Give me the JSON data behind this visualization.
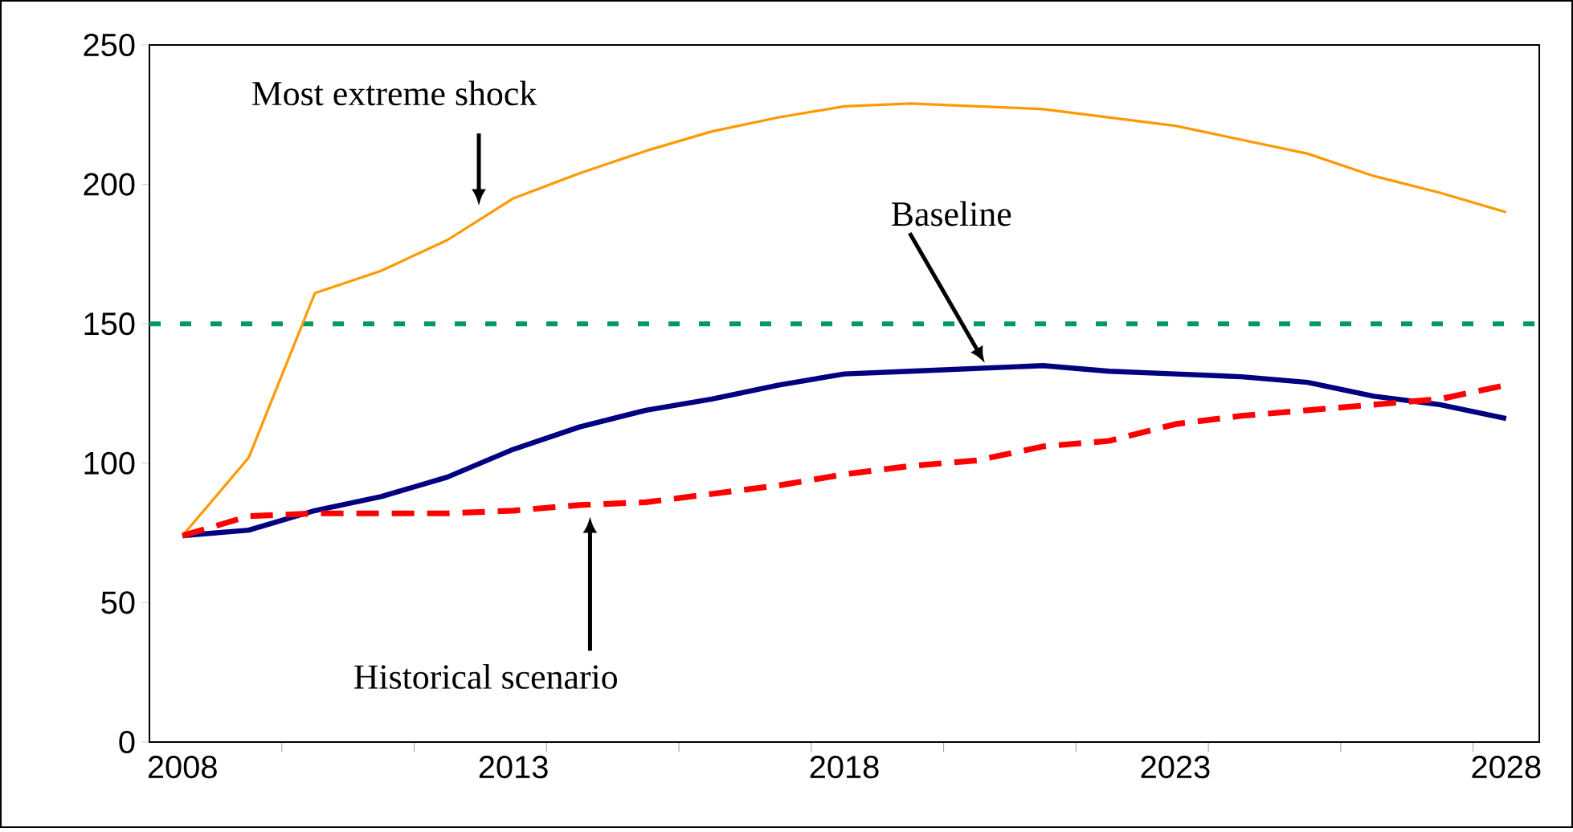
{
  "chart_data": {
    "type": "line",
    "x": [
      2008,
      2009,
      2010,
      2011,
      2012,
      2013,
      2014,
      2015,
      2016,
      2017,
      2018,
      2019,
      2020,
      2021,
      2022,
      2023,
      2024,
      2025,
      2026,
      2027,
      2028
    ],
    "series": [
      {
        "color": "#ff9900",
        "line_style": "solid",
        "values": [
          74,
          102,
          161,
          169,
          180,
          195,
          204,
          212,
          219,
          224,
          228,
          229,
          228,
          227,
          224,
          221,
          216,
          211,
          203,
          197,
          190
        ]
      },
      {
        "color": "#000080",
        "line_style": "solid",
        "values": [
          74,
          76,
          83,
          88,
          95,
          105,
          113,
          119,
          123,
          128,
          132,
          133,
          134,
          135,
          133,
          132,
          131,
          129,
          124,
          121,
          116
        ]
      },
      {
        "color": "#ff0000",
        "line_style": "dashed",
        "values": [
          74,
          81,
          82,
          82,
          82,
          83,
          85,
          86,
          89,
          92,
          96,
          99,
          101,
          106,
          108,
          114,
          117,
          119,
          121,
          123,
          128
        ]
      }
    ],
    "ref_lines": [
      {
        "axis": "y",
        "value": 150,
        "color": "#009966",
        "line_style": "dashed"
      }
    ],
    "annotations": [
      "Most extreme shock",
      "Baseline",
      "Historical scenario"
    ],
    "xlim": [
      2007.5,
      2028.5
    ],
    "xticks": [
      2008,
      2013,
      2018,
      2023,
      2028,
      {
        "value": 2009.5,
        "label": null
      },
      {
        "value": 2011.5,
        "label": null
      },
      {
        "value": 2013.5,
        "label": null
      },
      {
        "value": 2015.5,
        "label": null
      },
      {
        "value": 2017.5,
        "label": null
      },
      {
        "value": 2019.5,
        "label": null
      },
      {
        "value": 2021.5,
        "label": null
      },
      {
        "value": 2023.5,
        "label": null
      },
      {
        "value": 2025.5,
        "label": null
      },
      {
        "value": 2027.5,
        "label": null
      }
    ],
    "ylim": [
      0,
      250
    ],
    "yticks": [
      0,
      50,
      100,
      150,
      200,
      250
    ],
    "grid": false,
    "marker": "none"
  }
}
